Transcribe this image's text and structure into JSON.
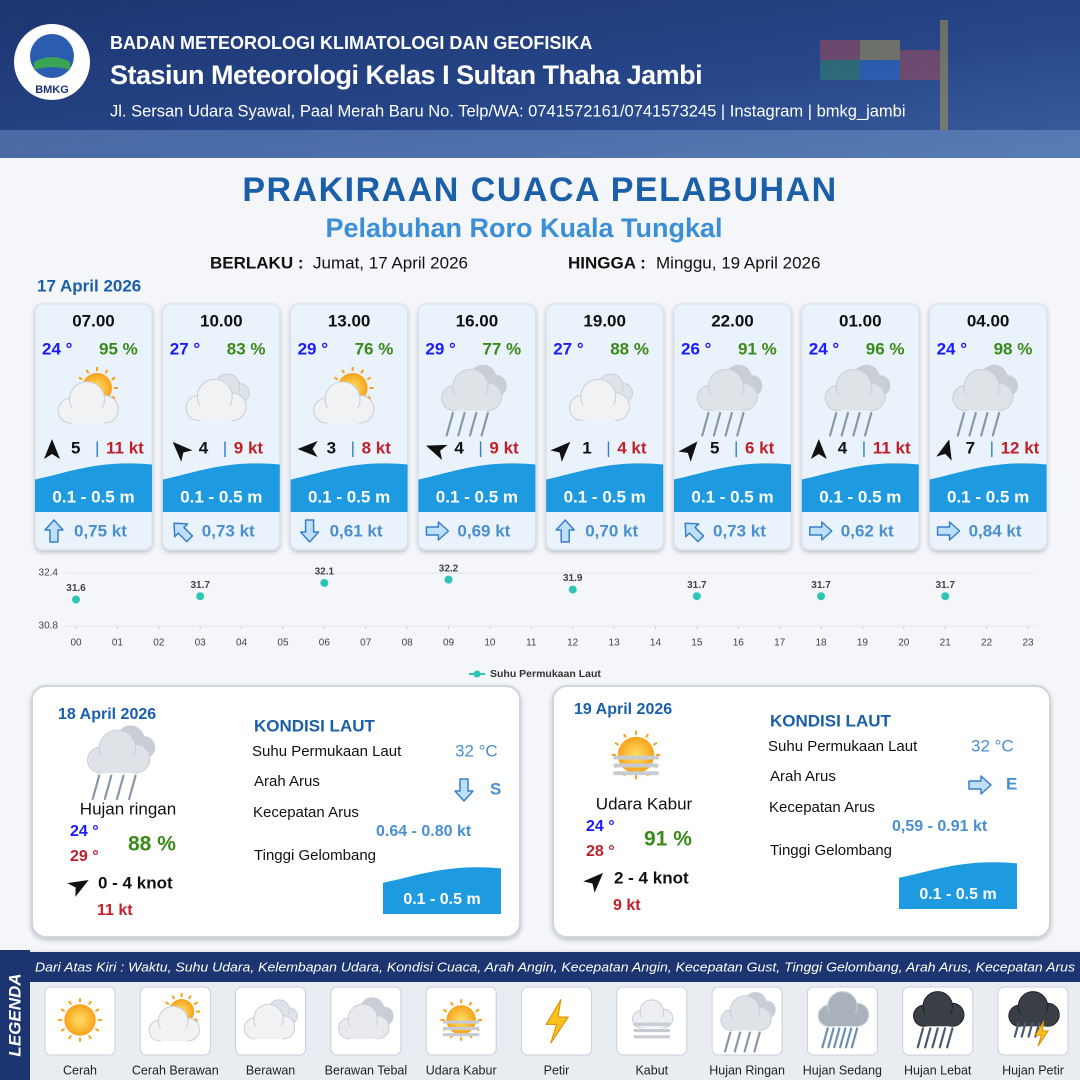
{
  "header": {
    "logo": "BMKG",
    "org": "BADAN METEOROLOGI KLIMATOLOGI DAN GEOFISIKA",
    "station": "Stasiun Meteorologi Kelas I Sultan Thaha Jambi",
    "address": "Jl. Sersan Udara Syawal, Paal Merah Baru No. Telp/WA: 0741572161/0741573245 | Instagram | bmkg_jambi"
  },
  "title": "PRAKIRAAN CUACA PELABUHAN",
  "subtitle": "Pelabuhan Roro Kuala Tungkal",
  "validity": {
    "from_label": "BERLAKU :",
    "from": "Jumat, 17 April 2026",
    "to_label": "HINGGA :",
    "to": "Minggu, 19 April 2026"
  },
  "day1": {
    "date": "17 April 2026",
    "forecasts": [
      {
        "time": "07.00",
        "temp": "24 °",
        "humidity": "95 %",
        "wind": "5",
        "gust": "11 kt",
        "wave": "0.1 - 0.5 m",
        "current": "0,75 kt"
      },
      {
        "time": "10.00",
        "temp": "27 °",
        "humidity": "83 %",
        "wind": "4",
        "gust": "9 kt",
        "wave": "0.1 - 0.5 m",
        "current": "0,73 kt"
      },
      {
        "time": "13.00",
        "temp": "29 °",
        "humidity": "76 %",
        "wind": "3",
        "gust": "8 kt",
        "wave": "0.1 - 0.5 m",
        "current": "0,61 kt"
      },
      {
        "time": "16.00",
        "temp": "29 °",
        "humidity": "77 %",
        "wind": "4",
        "gust": "9 kt",
        "wave": "0.1 - 0.5 m",
        "current": "0,69 kt"
      },
      {
        "time": "19.00",
        "temp": "27 °",
        "humidity": "88 %",
        "wind": "1",
        "gust": "4 kt",
        "wave": "0.1 - 0.5 m",
        "current": "0,70 kt"
      },
      {
        "time": "22.00",
        "temp": "26 °",
        "humidity": "91 %",
        "wind": "5",
        "gust": "6 kt",
        "wave": "0.1 - 0.5 m",
        "current": "0,73 kt"
      },
      {
        "time": "01.00",
        "temp": "24 °",
        "humidity": "96 %",
        "wind": "4",
        "gust": "11 kt",
        "wave": "0.1 - 0.5 m",
        "current": "0,62 kt"
      },
      {
        "time": "04.00",
        "temp": "24 °",
        "humidity": "98 %",
        "wind": "7",
        "gust": "12 kt",
        "wave": "0.1 - 0.5 m",
        "current": "0,84 kt"
      }
    ]
  },
  "chart_data": {
    "type": "scatter",
    "x": [
      0,
      3,
      6,
      9,
      12,
      15,
      18,
      21
    ],
    "series": [
      {
        "name": "Suhu Permukaan Laut",
        "color": "#2ec4b6",
        "values": [
          31.6,
          31.7,
          32.1,
          32.2,
          31.9,
          31.7,
          31.7,
          31.7
        ]
      }
    ],
    "xlim": [
      0,
      23
    ],
    "ylim": [
      30.8,
      32.4
    ],
    "yticks": [
      30.8,
      32.4
    ],
    "xticks": [
      {
        "value": 0,
        "label": "00"
      },
      {
        "value": 1,
        "label": "01"
      },
      {
        "value": 2,
        "label": "02"
      },
      {
        "value": 3,
        "label": "03"
      },
      {
        "value": 4,
        "label": "04"
      },
      {
        "value": 5,
        "label": "05"
      },
      {
        "value": 6,
        "label": "06"
      },
      {
        "value": 7,
        "label": "07"
      },
      {
        "value": 8,
        "label": "08"
      },
      {
        "value": 9,
        "label": "09"
      },
      10,
      11,
      12,
      13,
      14,
      15,
      16,
      17,
      18,
      19,
      20,
      21,
      22,
      23
    ]
  },
  "day2": {
    "date": "18 April 2026",
    "condition": "Hujan ringan",
    "tmin": "24 °",
    "tmax": "29 °",
    "humidity": "88 %",
    "wind": "0  - 4 knot",
    "gust": "11 kt",
    "sea_title": "KONDISI LAUT",
    "sst_label": "Suhu Permukaan Laut",
    "sst": "32 °C",
    "dir_label": "Arah Arus",
    "dir": "S",
    "speed_label": "Kecepatan Arus",
    "speed": "0.64  - 0.80 kt",
    "wave_label": "Tinggi Gelombang",
    "wave": "0.1 - 0.5 m"
  },
  "day3": {
    "date": "19 April 2026",
    "condition": "Udara Kabur",
    "tmin": "24 °",
    "tmax": "28 °",
    "humidity": "91 %",
    "wind": "2  - 4 knot",
    "gust": "9 kt",
    "sea_title": "KONDISI LAUT",
    "sst_label": "Suhu Permukaan Laut",
    "sst": "32 °C",
    "dir_label": "Arah Arus",
    "dir": "E",
    "speed_label": "Kecepatan Arus",
    "speed": "0,59 - 0.91 kt",
    "wave_label": "Tinggi Gelombang",
    "wave": "0.1 - 0.5 m"
  },
  "legend": {
    "title": "LEGENDA",
    "description": "Dari Atas Kiri : Waktu, Suhu Udara, Kelembapan Udara, Kondisi Cuaca, Arah Angin, Kecepatan Angin, Kecepatan Gust, Tinggi Gelombang, Arah Arus, Kecepatan Arus",
    "items": [
      "Cerah",
      "Cerah Berawan",
      "Berawan",
      "Berawan Tebal",
      "Udara Kabur",
      "Petir",
      "Kabut",
      "Hujan Ringan",
      "Hujan Sedang",
      "Hujan Lebat",
      "Hujan Petir"
    ]
  }
}
